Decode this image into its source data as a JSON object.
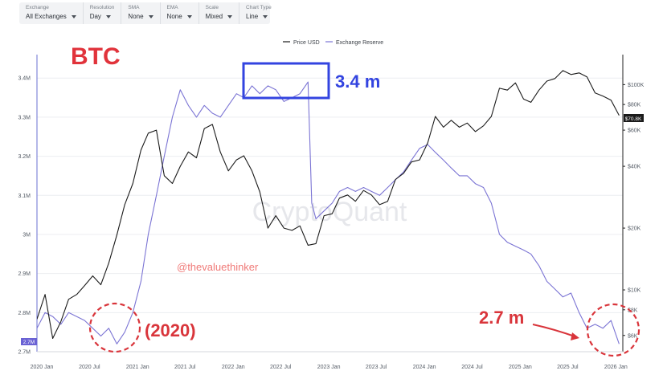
{
  "toolbar": {
    "controls": [
      {
        "label": "Exchange",
        "value": "All Exchanges"
      },
      {
        "label": "Resolution",
        "value": "Day"
      },
      {
        "label": "SMA",
        "value": "None"
      },
      {
        "label": "EMA",
        "value": "None"
      },
      {
        "label": "Scale",
        "value": "Mixed"
      },
      {
        "label": "Chart Type",
        "value": "Line"
      }
    ]
  },
  "chart_data": {
    "type": "line",
    "title": "BTC",
    "legend": {
      "placement": "top-center",
      "entries": [
        "Price USD",
        "Exchange Reserve"
      ]
    },
    "watermark": "CryptoQuant",
    "credit": "@thevaluethinker",
    "x_ticks": [
      "2020 Jan",
      "2020 Jul",
      "2021 Jan",
      "2021 Jul",
      "2022 Jan",
      "2022 Jul",
      "2023 Jan",
      "2023 Jul",
      "2024 Jan",
      "2024 Jul",
      "2025 Jan",
      "2025 Jul",
      "2026 Jan"
    ],
    "left_axis": {
      "ticks": [
        "3.4M",
        "3.3M",
        "3.2M",
        "3.1M",
        "3M",
        "2.9M",
        "2.8M",
        "2.7M"
      ],
      "range": [
        2700000,
        3460000
      ],
      "current_value_label": "2.7M"
    },
    "right_axis": {
      "ticks": [
        "$100K",
        "$80K",
        "$60K",
        "$40K",
        "$20K",
        "$10K",
        "$8K",
        "$6K"
      ],
      "current_value_label": "$70.8K"
    },
    "annotations": {
      "peak_label": "3.4 m",
      "start_label": "(2020)",
      "end_label": "2.7 m"
    },
    "series": [
      {
        "name": "Exchange Reserve",
        "color": "#7b74d4",
        "unit": "BTC",
        "points": [
          [
            "2020-01-01",
            2760000
          ],
          [
            "2020-02-01",
            2800000
          ],
          [
            "2020-03-01",
            2790000
          ],
          [
            "2020-04-01",
            2770000
          ],
          [
            "2020-05-01",
            2800000
          ],
          [
            "2020-06-01",
            2790000
          ],
          [
            "2020-07-01",
            2780000
          ],
          [
            "2020-08-01",
            2760000
          ],
          [
            "2020-09-01",
            2740000
          ],
          [
            "2020-10-01",
            2760000
          ],
          [
            "2020-11-01",
            2720000
          ],
          [
            "2020-12-01",
            2750000
          ],
          [
            "2021-01-01",
            2800000
          ],
          [
            "2021-02-01",
            2880000
          ],
          [
            "2021-03-01",
            3000000
          ],
          [
            "2021-04-01",
            3100000
          ],
          [
            "2021-05-01",
            3200000
          ],
          [
            "2021-06-01",
            3300000
          ],
          [
            "2021-07-01",
            3370000
          ],
          [
            "2021-08-01",
            3330000
          ],
          [
            "2021-09-01",
            3300000
          ],
          [
            "2021-10-01",
            3330000
          ],
          [
            "2021-11-01",
            3310000
          ],
          [
            "2021-12-01",
            3300000
          ],
          [
            "2022-01-01",
            3330000
          ],
          [
            "2022-02-01",
            3360000
          ],
          [
            "2022-03-01",
            3350000
          ],
          [
            "2022-04-01",
            3380000
          ],
          [
            "2022-05-01",
            3360000
          ],
          [
            "2022-06-01",
            3380000
          ],
          [
            "2022-07-01",
            3370000
          ],
          [
            "2022-08-01",
            3340000
          ],
          [
            "2022-09-01",
            3350000
          ],
          [
            "2022-10-01",
            3360000
          ],
          [
            "2022-11-01",
            3390000
          ],
          [
            "2022-11-15",
            3080000
          ],
          [
            "2022-12-01",
            3040000
          ],
          [
            "2023-01-01",
            3060000
          ],
          [
            "2023-02-01",
            3080000
          ],
          [
            "2023-03-01",
            3110000
          ],
          [
            "2023-04-01",
            3120000
          ],
          [
            "2023-05-01",
            3110000
          ],
          [
            "2023-06-01",
            3120000
          ],
          [
            "2023-07-01",
            3110000
          ],
          [
            "2023-08-01",
            3100000
          ],
          [
            "2023-09-01",
            3120000
          ],
          [
            "2023-10-01",
            3140000
          ],
          [
            "2023-11-01",
            3160000
          ],
          [
            "2023-12-01",
            3190000
          ],
          [
            "2024-01-01",
            3220000
          ],
          [
            "2024-02-01",
            3230000
          ],
          [
            "2024-03-01",
            3210000
          ],
          [
            "2024-04-01",
            3190000
          ],
          [
            "2024-05-01",
            3170000
          ],
          [
            "2024-06-01",
            3150000
          ],
          [
            "2024-07-01",
            3150000
          ],
          [
            "2024-08-01",
            3130000
          ],
          [
            "2024-09-01",
            3120000
          ],
          [
            "2024-10-01",
            3080000
          ],
          [
            "2024-11-01",
            3000000
          ],
          [
            "2024-12-01",
            2980000
          ],
          [
            "2025-01-01",
            2970000
          ],
          [
            "2025-02-01",
            2960000
          ],
          [
            "2025-03-01",
            2950000
          ],
          [
            "2025-04-01",
            2920000
          ],
          [
            "2025-05-01",
            2880000
          ],
          [
            "2025-06-01",
            2860000
          ],
          [
            "2025-07-01",
            2840000
          ],
          [
            "2025-08-01",
            2850000
          ],
          [
            "2025-09-01",
            2800000
          ],
          [
            "2025-10-01",
            2760000
          ],
          [
            "2025-11-01",
            2770000
          ],
          [
            "2025-12-01",
            2760000
          ],
          [
            "2026-01-01",
            2780000
          ],
          [
            "2026-02-01",
            2720000
          ]
        ]
      },
      {
        "name": "Price USD",
        "color": "#1b1b1b",
        "unit": "USD",
        "points": [
          [
            "2020-01-01",
            7200
          ],
          [
            "2020-02-01",
            9500
          ],
          [
            "2020-03-01",
            5800
          ],
          [
            "2020-04-01",
            7000
          ],
          [
            "2020-05-01",
            9000
          ],
          [
            "2020-06-01",
            9500
          ],
          [
            "2020-07-01",
            10500
          ],
          [
            "2020-08-01",
            11700
          ],
          [
            "2020-09-01",
            10600
          ],
          [
            "2020-10-01",
            13500
          ],
          [
            "2020-11-01",
            18500
          ],
          [
            "2020-12-01",
            26000
          ],
          [
            "2021-01-01",
            33000
          ],
          [
            "2021-02-01",
            48000
          ],
          [
            "2021-03-01",
            58000
          ],
          [
            "2021-04-01",
            60000
          ],
          [
            "2021-05-01",
            36000
          ],
          [
            "2021-06-01",
            33000
          ],
          [
            "2021-07-01",
            40000
          ],
          [
            "2021-08-01",
            47000
          ],
          [
            "2021-09-01",
            44000
          ],
          [
            "2021-10-01",
            61000
          ],
          [
            "2021-11-01",
            64000
          ],
          [
            "2021-12-01",
            47000
          ],
          [
            "2022-01-01",
            38000
          ],
          [
            "2022-02-01",
            43000
          ],
          [
            "2022-03-01",
            45000
          ],
          [
            "2022-04-01",
            38000
          ],
          [
            "2022-05-01",
            30000
          ],
          [
            "2022-06-01",
            20000
          ],
          [
            "2022-07-01",
            23000
          ],
          [
            "2022-08-01",
            20000
          ],
          [
            "2022-09-01",
            19500
          ],
          [
            "2022-10-01",
            20500
          ],
          [
            "2022-11-01",
            16500
          ],
          [
            "2022-12-01",
            16800
          ],
          [
            "2023-01-01",
            23000
          ],
          [
            "2023-02-01",
            23500
          ],
          [
            "2023-03-01",
            28000
          ],
          [
            "2023-04-01",
            29000
          ],
          [
            "2023-05-01",
            27000
          ],
          [
            "2023-06-01",
            30500
          ],
          [
            "2023-07-01",
            29000
          ],
          [
            "2023-08-01",
            26000
          ],
          [
            "2023-09-01",
            27000
          ],
          [
            "2023-10-01",
            34500
          ],
          [
            "2023-11-01",
            37000
          ],
          [
            "2023-12-01",
            42000
          ],
          [
            "2024-01-01",
            43000
          ],
          [
            "2024-02-01",
            52000
          ],
          [
            "2024-03-01",
            70000
          ],
          [
            "2024-04-01",
            62000
          ],
          [
            "2024-05-01",
            67000
          ],
          [
            "2024-06-01",
            62000
          ],
          [
            "2024-07-01",
            65000
          ],
          [
            "2024-08-01",
            59000
          ],
          [
            "2024-09-01",
            63000
          ],
          [
            "2024-10-01",
            70000
          ],
          [
            "2024-11-01",
            96000
          ],
          [
            "2024-12-01",
            94000
          ],
          [
            "2025-01-01",
            102000
          ],
          [
            "2025-02-01",
            85000
          ],
          [
            "2025-03-01",
            82000
          ],
          [
            "2025-04-01",
            94000
          ],
          [
            "2025-05-01",
            104000
          ],
          [
            "2025-06-01",
            107000
          ],
          [
            "2025-07-01",
            117000
          ],
          [
            "2025-08-01",
            112000
          ],
          [
            "2025-09-01",
            114000
          ],
          [
            "2025-10-01",
            109000
          ],
          [
            "2025-11-01",
            91000
          ],
          [
            "2025-12-01",
            88000
          ],
          [
            "2026-01-01",
            84000
          ],
          [
            "2026-02-01",
            70800
          ]
        ]
      }
    ]
  }
}
